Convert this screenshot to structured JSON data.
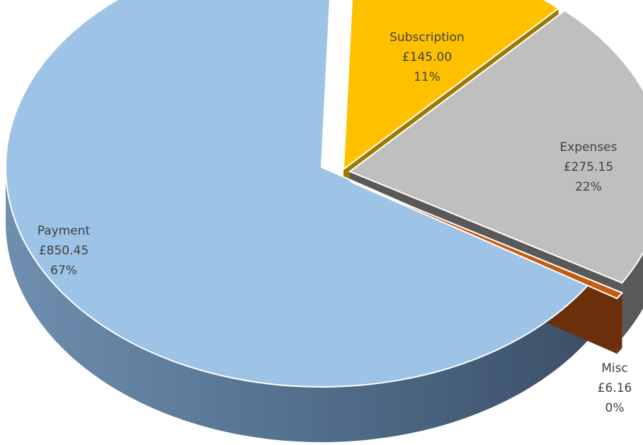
{
  "chart_data": {
    "type": "pie",
    "style": "3d-exploded",
    "categories": [
      "Payment",
      "Subscription",
      "Expenses",
      "Misc"
    ],
    "values": [
      850.45,
      145.0,
      275.15,
      6.16
    ],
    "value_labels": [
      "£850.45",
      "£145.00",
      "£275.15",
      "£6.16"
    ],
    "percent_labels": [
      "67%",
      "11%",
      "22%",
      "0%"
    ],
    "colors": [
      "#9dc3e6",
      "#ffc000",
      "#bfbfbf",
      "#c55a11"
    ],
    "side_colors": [
      "#5a7591",
      "#9c7a00",
      "#595959",
      "#6b300b"
    ],
    "title": "",
    "legend": "none"
  }
}
